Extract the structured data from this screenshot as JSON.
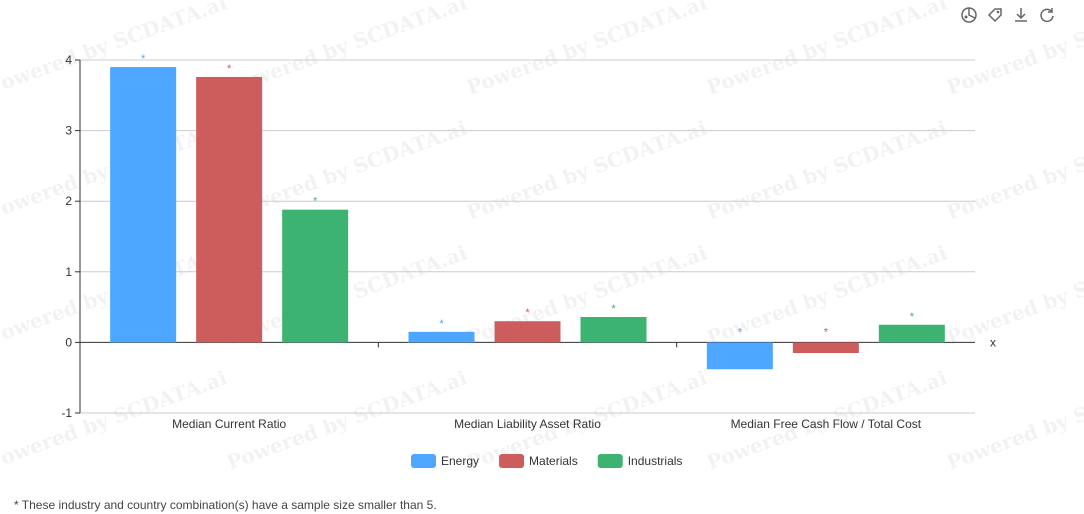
{
  "chart_data": {
    "type": "bar",
    "categories": [
      "Median Current Ratio",
      "Median Liability Asset Ratio",
      "Median Free Cash Flow / Total Cost"
    ],
    "series": [
      {
        "name": "Energy",
        "color": "#4da6ff",
        "values": [
          3.9,
          0.15,
          -0.38
        ]
      },
      {
        "name": "Materials",
        "color": "#cd5c5c",
        "values": [
          3.76,
          0.3,
          -0.15
        ]
      },
      {
        "name": "Industrials",
        "color": "#3cb371",
        "values": [
          1.88,
          0.36,
          0.25
        ]
      }
    ],
    "marker": "*",
    "xlabel": "x",
    "ylabel": "",
    "ylim": [
      -1,
      4
    ],
    "yticks": [
      -1,
      0,
      1,
      2,
      3,
      4
    ],
    "grid": true,
    "legend": "bottom"
  },
  "footnote": "* These industry and country combination(s) have a sample size smaller than 5.",
  "watermark": "Powered by SCDATA.ai",
  "toolbar": {
    "icons": [
      "chart-type-icon",
      "tag-icon",
      "download-icon",
      "refresh-icon"
    ]
  }
}
